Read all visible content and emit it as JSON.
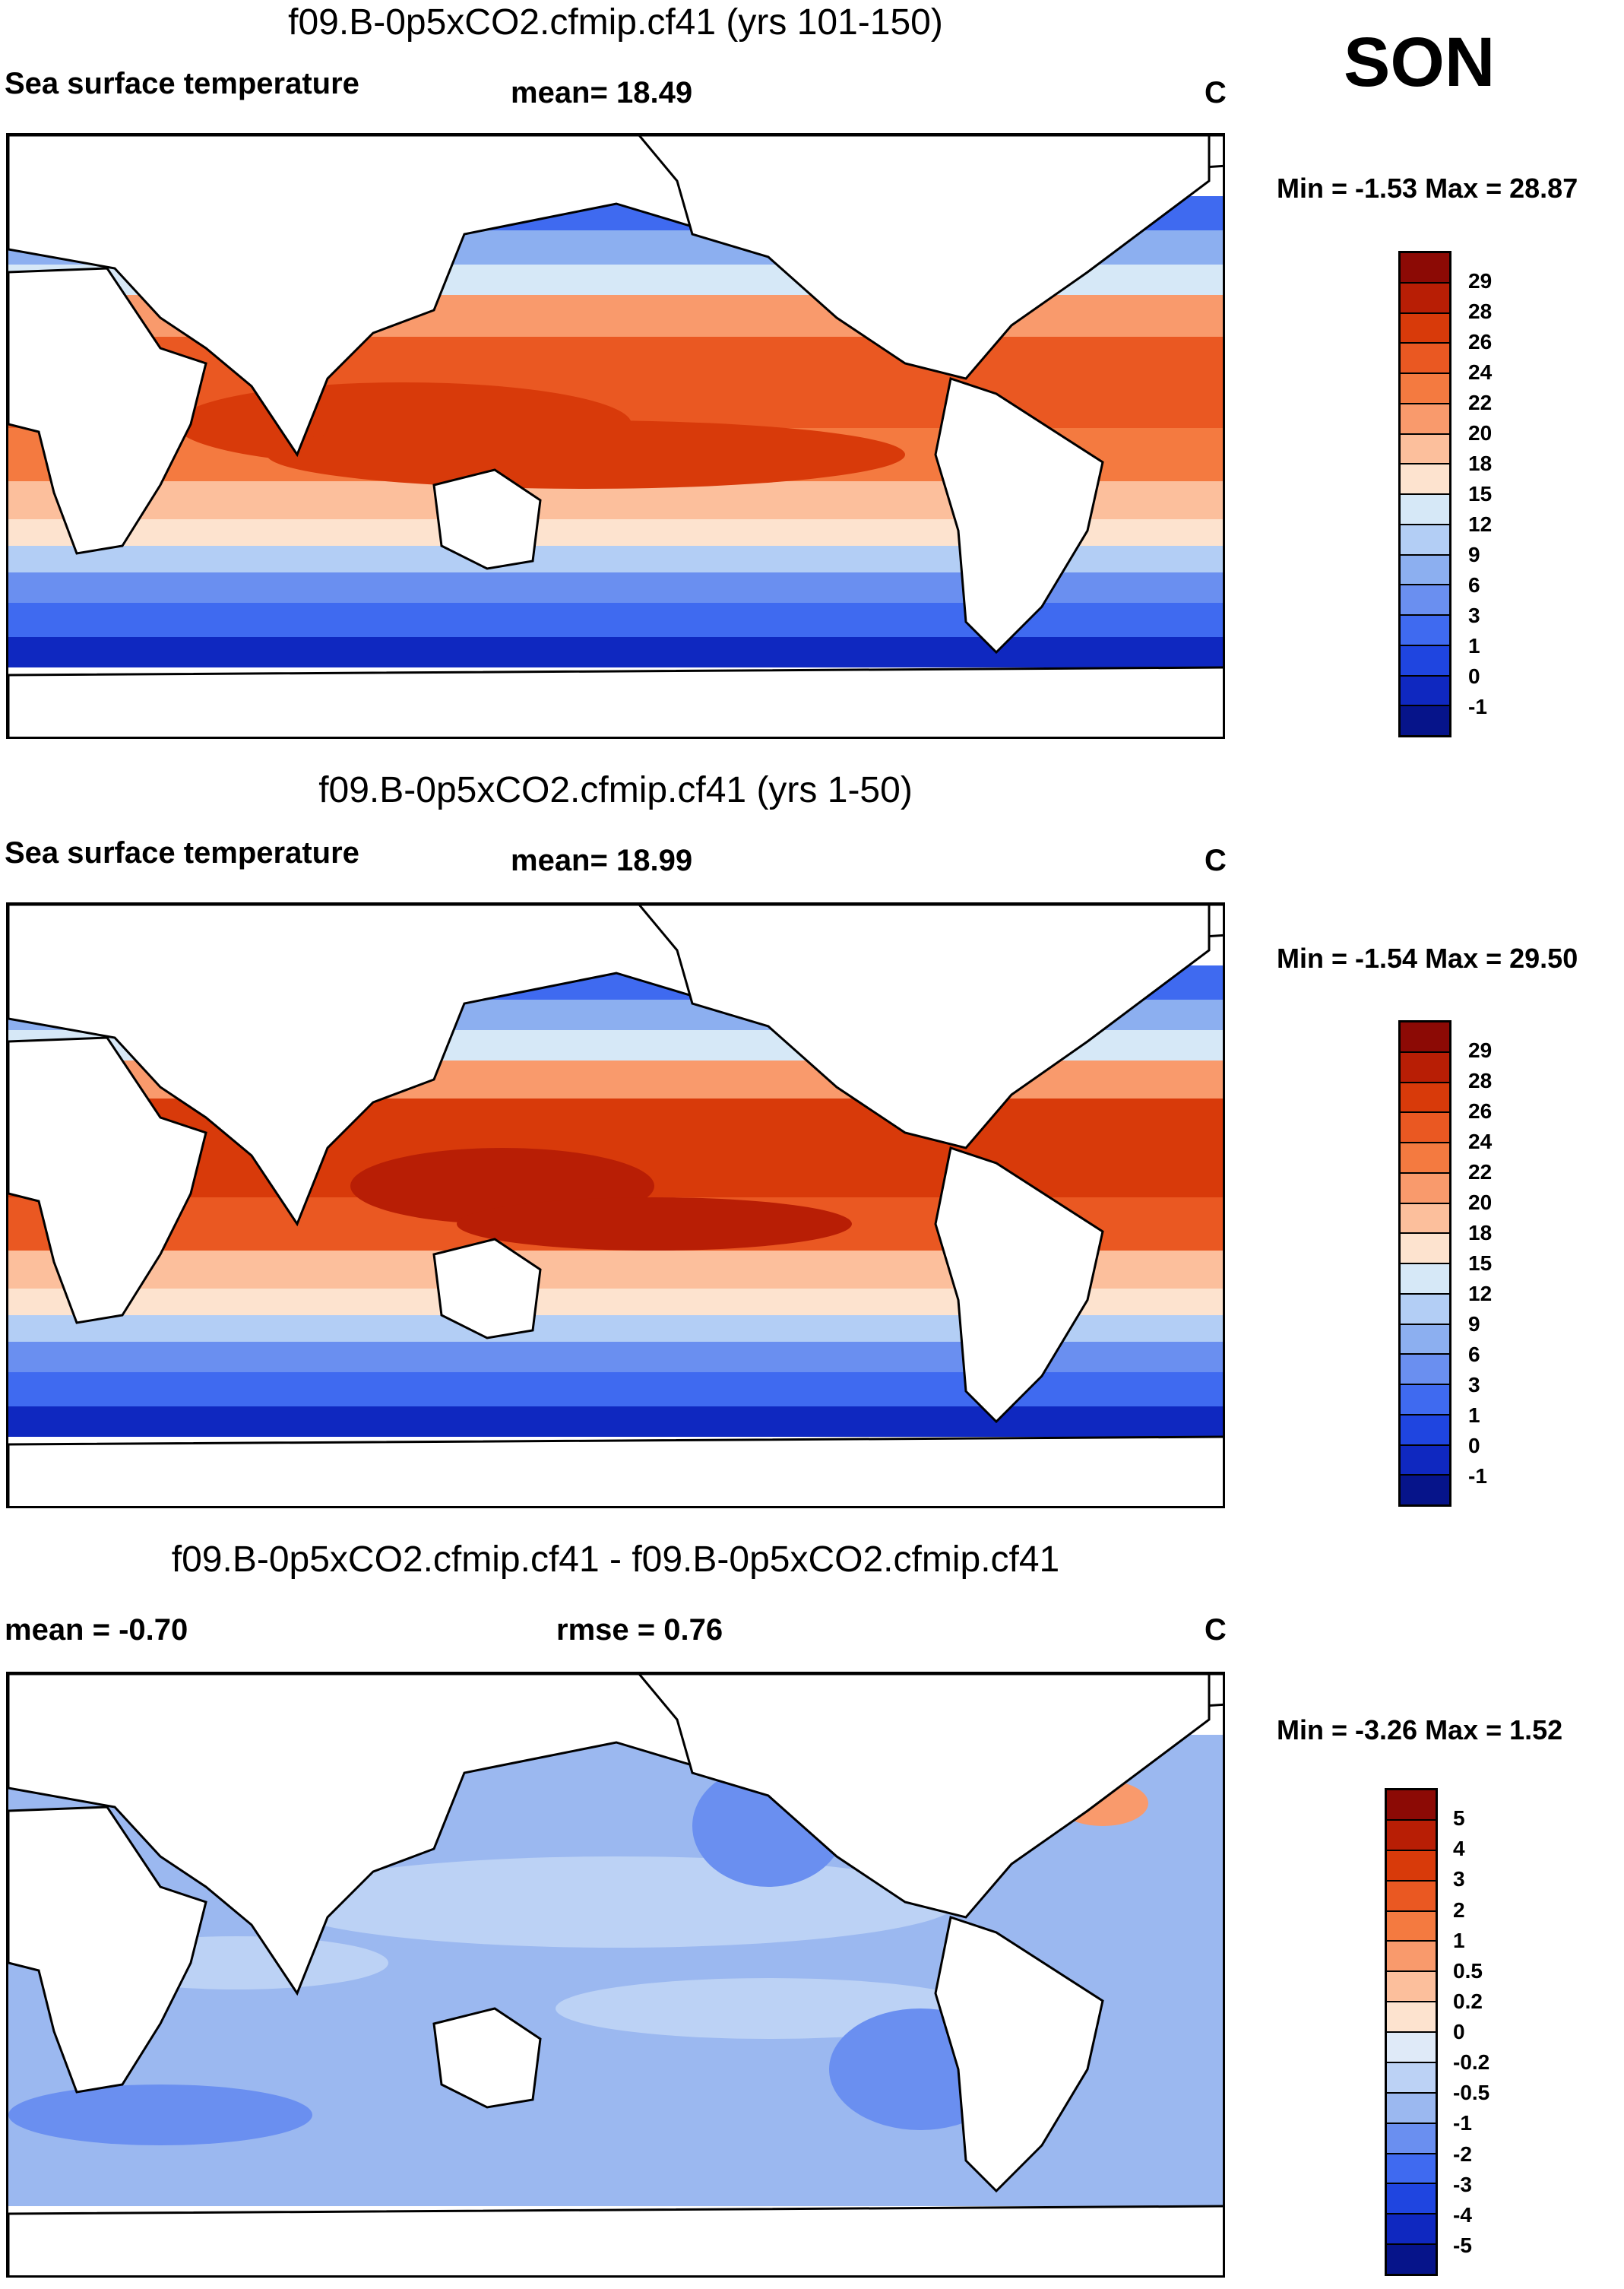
{
  "season": "SON",
  "panels": [
    {
      "title": "f09.B-0p5xCO2.cfmip.cf41 (yrs 101-150)",
      "left_label": "Sea surface temperature",
      "center_label": "mean=  18.49",
      "right_label": "C",
      "minmax": "Min =  -1.53 Max =  28.87",
      "colorbar": {
        "levels": [
          "29",
          "28",
          "26",
          "24",
          "22",
          "20",
          "18",
          "15",
          "12",
          "9",
          "6",
          "3",
          "1",
          "0",
          "-1"
        ],
        "colors": [
          "#8c0a05",
          "#b81e05",
          "#d83a0a",
          "#ea5822",
          "#f47a40",
          "#f99a6c",
          "#fcbf9c",
          "#fde3cf",
          "#d6e8f7",
          "#b3cef5",
          "#8caff0",
          "#6a8ff0",
          "#3f6af0",
          "#1f45e0",
          "#0f28c0",
          "#06148a"
        ]
      }
    },
    {
      "title": "f09.B-0p5xCO2.cfmip.cf41 (yrs 1-50)",
      "left_label": "Sea surface temperature",
      "center_label": "mean=  18.99",
      "right_label": "C",
      "minmax": "Min =  -1.54 Max =  29.50",
      "colorbar": {
        "levels": [
          "29",
          "28",
          "26",
          "24",
          "22",
          "20",
          "18",
          "15",
          "12",
          "9",
          "6",
          "3",
          "1",
          "0",
          "-1"
        ],
        "colors": [
          "#8c0a05",
          "#b81e05",
          "#d83a0a",
          "#ea5822",
          "#f47a40",
          "#f99a6c",
          "#fcbf9c",
          "#fde3cf",
          "#d6e8f7",
          "#b3cef5",
          "#8caff0",
          "#6a8ff0",
          "#3f6af0",
          "#1f45e0",
          "#0f28c0",
          "#06148a"
        ]
      }
    },
    {
      "title": "f09.B-0p5xCO2.cfmip.cf41 - f09.B-0p5xCO2.cfmip.cf41",
      "left_label": "mean =  -0.70",
      "center_label": "rmse =   0.76",
      "right_label": "C",
      "minmax": "Min =  -3.26 Max =   1.52",
      "colorbar": {
        "levels": [
          "5",
          "4",
          "3",
          "2",
          "1",
          "0.5",
          "0.2",
          "0",
          "-0.2",
          "-0.5",
          "-1",
          "-2",
          "-3",
          "-4",
          "-5"
        ],
        "colors": [
          "#8c0a05",
          "#b81e05",
          "#d83a0a",
          "#ea5822",
          "#f47a40",
          "#f99a6c",
          "#fcbf9c",
          "#fde3cf",
          "#dfeaf8",
          "#bcd2f5",
          "#9bb8f0",
          "#6a8ff0",
          "#3f6af0",
          "#1f45e0",
          "#0f28c0",
          "#06148a"
        ]
      }
    }
  ]
}
